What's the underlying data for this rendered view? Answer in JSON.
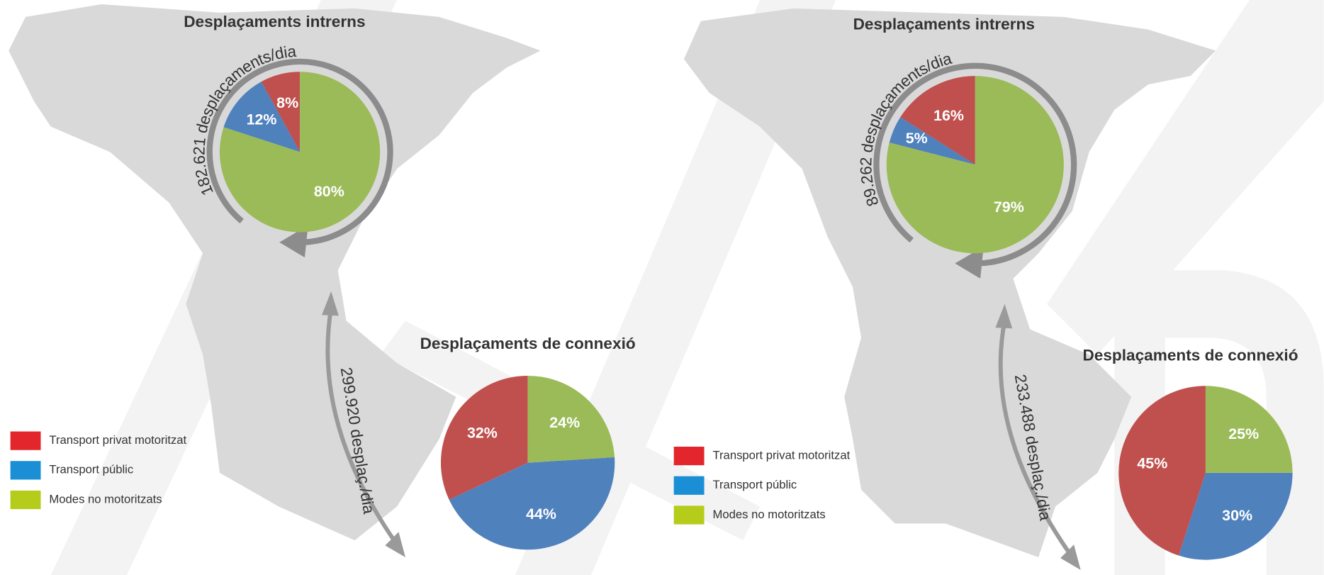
{
  "chart_data": [
    {
      "type": "pie",
      "title": "Desplaçaments intrerns",
      "annotation": "182.621 desplaçaments/dia",
      "values": [
        8,
        12,
        80
      ],
      "value_labels": [
        "8%",
        "12%",
        "80%"
      ],
      "colors": [
        "#c0504d",
        "#4f81bd",
        "#9bbb59"
      ]
    },
    {
      "type": "pie",
      "title": "Desplaçaments de connexió",
      "annotation": "299.920 desplaç./dia",
      "categories": [
        "Transport privat motoritzat",
        "Transport públic",
        "Modes no motoritzats"
      ],
      "values": [
        32,
        44,
        24
      ],
      "value_labels": [
        "32%",
        "44%",
        "24%"
      ],
      "colors": [
        "#c0504d",
        "#4f81bd",
        "#9bbb59"
      ],
      "legend_colors": [
        "#e2262b",
        "#1a8fd6",
        "#b5cc1a"
      ]
    },
    {
      "type": "pie",
      "title": "Desplaçaments intrerns",
      "annotation": "89.262 desplaçaments/dia",
      "values": [
        16,
        5,
        79
      ],
      "value_labels": [
        "16%",
        "5%",
        "79%"
      ],
      "colors": [
        "#c0504d",
        "#4f81bd",
        "#9bbb59"
      ]
    },
    {
      "type": "pie",
      "title": "Desplaçaments de connexió",
      "annotation": "233.488 desplaç./dia",
      "categories": [
        "Transport privat motoritzat",
        "Transport públic",
        "Modes no motoritzats"
      ],
      "values": [
        45,
        30,
        25
      ],
      "value_labels": [
        "45%",
        "30%",
        "25%"
      ],
      "colors": [
        "#c0504d",
        "#4f81bd",
        "#9bbb59"
      ],
      "legend_colors": [
        "#e2262b",
        "#1a8fd6",
        "#b5cc1a"
      ]
    }
  ]
}
